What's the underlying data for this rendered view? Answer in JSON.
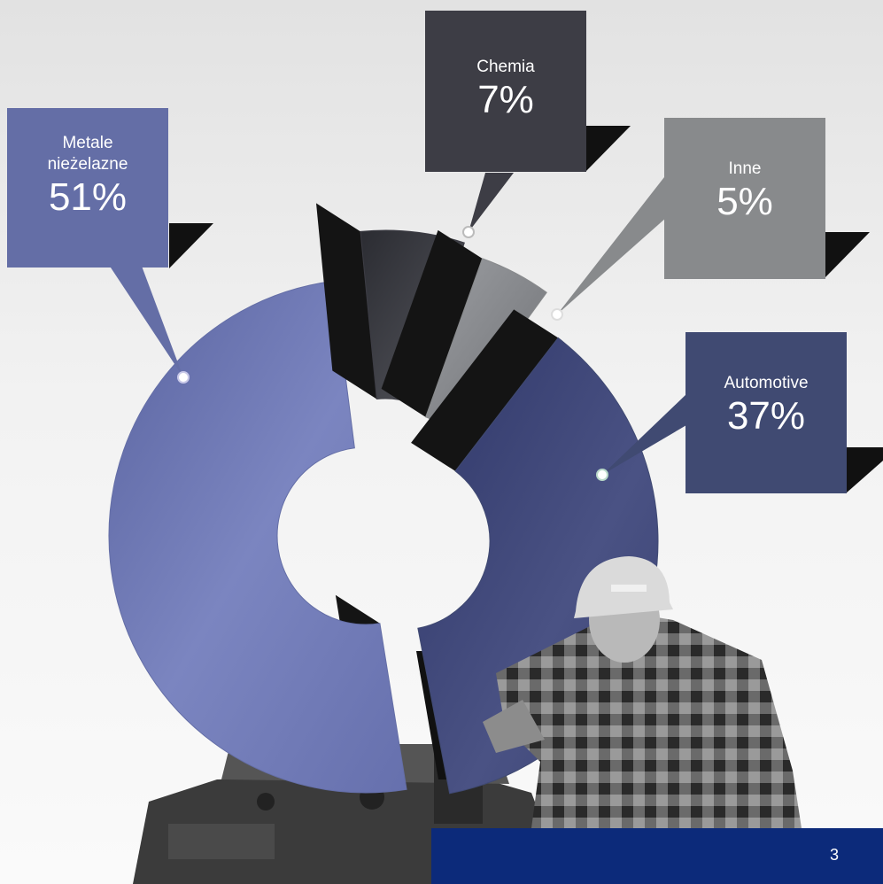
{
  "chart_data": {
    "type": "pie",
    "categories": [
      "Metale nieżelazne",
      "Chemia",
      "Inne",
      "Automotive"
    ],
    "series": [
      {
        "values": [
          51,
          7,
          5,
          37
        ]
      }
    ],
    "value_labels": [
      "51%",
      "7%",
      "5%",
      "37%"
    ],
    "colors": [
      "#646ea6",
      "#3d3d45",
      "#888a8c",
      "#404a72"
    ]
  },
  "callouts": [
    {
      "label": "Metale\nnieżelazne",
      "value": "51%",
      "color": "#646ea6"
    },
    {
      "label": "Chemia",
      "value": "7%",
      "color": "#3d3d45"
    },
    {
      "label": "Inne",
      "value": "5%",
      "color": "#888a8c"
    },
    {
      "label": "Automotive",
      "value": "37%",
      "color": "#404a72"
    }
  ],
  "footer": {
    "page_number": "3",
    "color": "#0c2a7a"
  }
}
